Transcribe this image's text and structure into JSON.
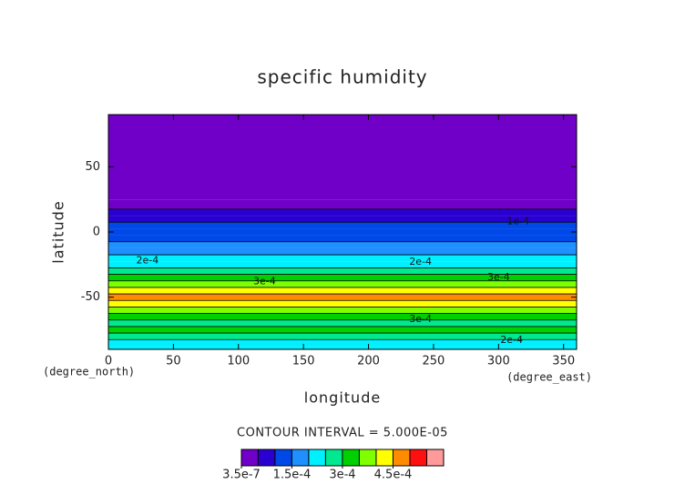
{
  "chart_data": {
    "type": "contour",
    "title": "specific humidity",
    "x_label": "longitude",
    "y_label": "latitude",
    "x_unit": "(degree_east)",
    "y_unit": "(degree_north)",
    "note": "CONTOUR INTERVAL = 5.000E-05",
    "xlim": [
      0,
      360
    ],
    "xticks": [
      0,
      50,
      100,
      150,
      200,
      250,
      300,
      350
    ],
    "ylim": [
      -90,
      90
    ],
    "yticks": [
      -50,
      0,
      50
    ],
    "y": [
      90,
      60,
      30,
      20,
      15,
      10,
      5,
      0,
      -5,
      -10,
      -15,
      -20,
      -25,
      -30,
      -35,
      -40,
      -45,
      -50,
      -55,
      -60,
      -65,
      -70,
      -75,
      -80,
      -85,
      -90
    ],
    "values": [
      1e-05,
      2e-05,
      3e-05,
      4e-05,
      7e-05,
      9e-05,
      0.00012,
      0.00013,
      0.00014,
      0.00016,
      0.00018,
      0.00021,
      0.00023,
      0.00028,
      0.00033,
      0.00038,
      0.00043,
      0.00046,
      0.00041,
      0.00035,
      0.00032,
      0.00029,
      0.00031,
      0.00027,
      0.00023,
      0.0002
    ],
    "levels": [
      3.5e-07,
      5e-05,
      0.0001,
      0.00015,
      0.0002,
      0.00025,
      0.0003,
      0.00035,
      0.0004,
      0.00045,
      0.0005,
      0.00055,
      0.0006
    ],
    "colors": [
      "#7000c8",
      "#2a00d2",
      "#0048e8",
      "#1e90ff",
      "#00f0ff",
      "#00e890",
      "#00d000",
      "#80ff00",
      "#ffff00",
      "#ff8c00",
      "#ff1010",
      "#ff9a9a"
    ],
    "colorbar_ticks": [
      {
        "value": 3.5e-07,
        "label": "3.5e-7"
      },
      {
        "value": 0.00015,
        "label": "1.5e-4"
      },
      {
        "value": 0.0003,
        "label": "3e-4"
      },
      {
        "value": 0.00045,
        "label": "4.5e-4"
      }
    ],
    "annotations": [
      {
        "text": "2e-4",
        "x": 30,
        "y": -22
      },
      {
        "text": "2e-4",
        "x": 240,
        "y": -23
      },
      {
        "text": "3e-4",
        "x": 120,
        "y": -38
      },
      {
        "text": "3e-4",
        "x": 300,
        "y": -35
      },
      {
        "text": "1e-4",
        "x": 315,
        "y": 8
      },
      {
        "text": "3e-4",
        "x": 240,
        "y": -67
      },
      {
        "text": "2e-4",
        "x": 310,
        "y": -83
      }
    ]
  }
}
